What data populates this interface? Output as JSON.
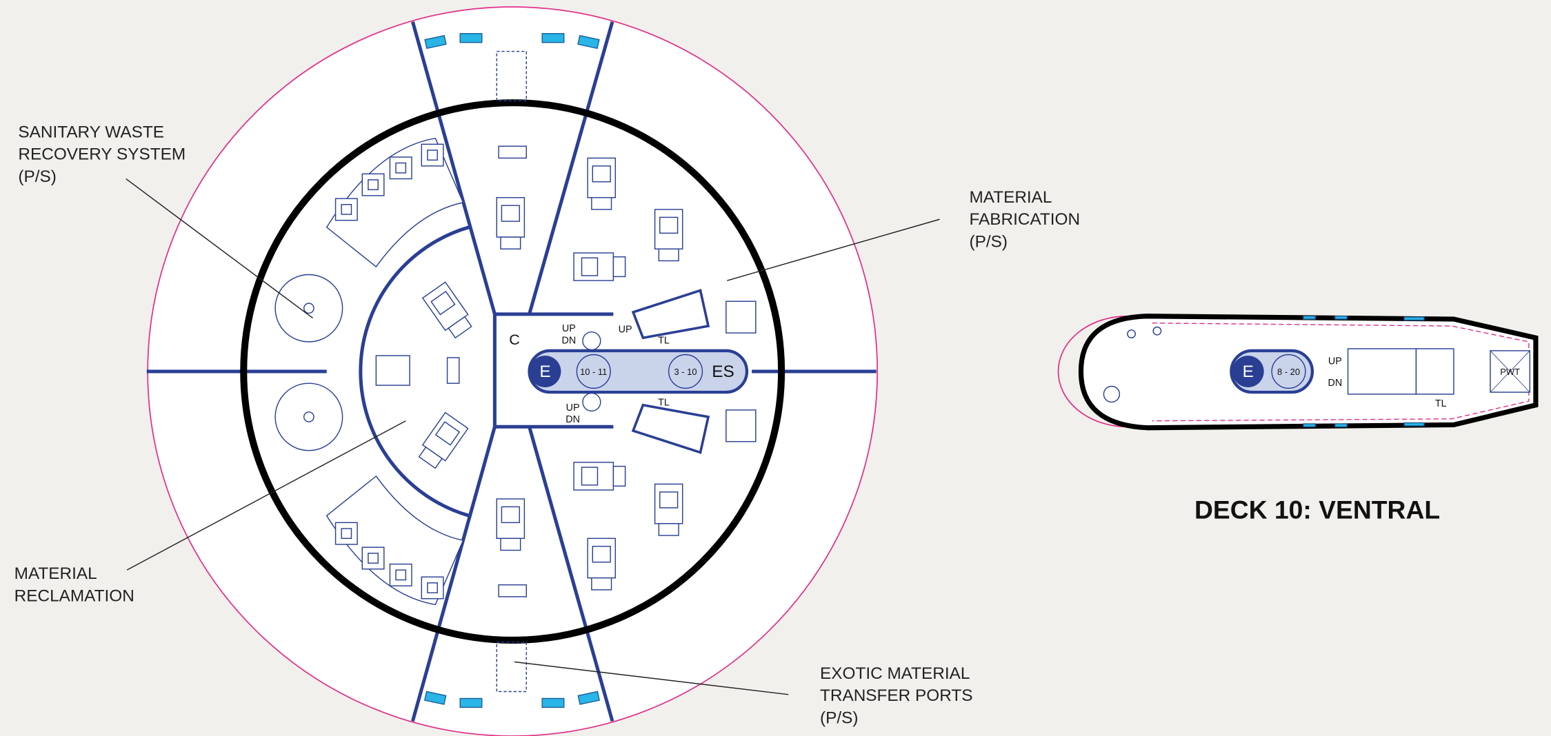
{
  "title": "DECK 10: VENTRAL",
  "callouts": [
    {
      "lines": [
        "SANITARY WASTE",
        "RECOVERY SYSTEM",
        "(P/S)"
      ]
    },
    {
      "lines": [
        "MATERIAL",
        "FABRICATION",
        "(P/S)"
      ]
    },
    {
      "lines": [
        "MATERIAL",
        "RECLAMATION"
      ]
    },
    {
      "lines": [
        "EXOTIC MATERIAL",
        "TRANSFER PORTS",
        "(P/S)"
      ]
    }
  ],
  "saucer_labels": {
    "corridor": "C",
    "elevator": "E",
    "lift_a": "10 - 11",
    "lift_b": "3 - 10",
    "escape": "ES",
    "upper_up": "UP",
    "upper_dn": "DN",
    "lower_up": "UP",
    "lower_dn": "DN",
    "stair_up": "UP",
    "tl_top": "TL",
    "tl_bottom": "TL"
  },
  "ship_labels": {
    "elevator": "E",
    "lift": "8 - 20",
    "up": "UP",
    "dn": "DN",
    "tl": "TL",
    "pwt": "PWT"
  }
}
